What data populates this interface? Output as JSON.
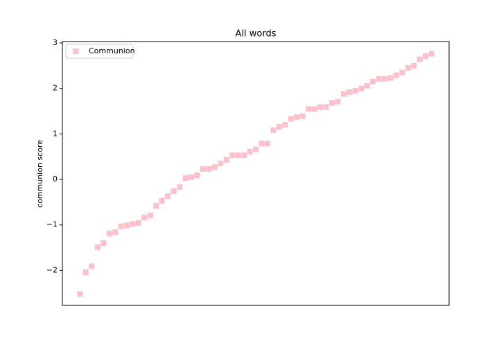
{
  "chart_data": {
    "type": "scatter",
    "title": "All words",
    "ylabel": "communion score",
    "series": [
      {
        "name": "Communion",
        "color": "#ffc0cb",
        "marker": "square",
        "values": [
          -2.52,
          -2.04,
          -1.91,
          -1.49,
          -1.4,
          -1.19,
          -1.16,
          -1.03,
          -1.01,
          -0.98,
          -0.96,
          -0.84,
          -0.79,
          -0.58,
          -0.47,
          -0.37,
          -0.26,
          -0.17,
          0.03,
          0.05,
          0.09,
          0.23,
          0.23,
          0.27,
          0.35,
          0.43,
          0.53,
          0.53,
          0.53,
          0.61,
          0.66,
          0.79,
          0.79,
          1.08,
          1.16,
          1.2,
          1.33,
          1.37,
          1.39,
          1.55,
          1.55,
          1.59,
          1.59,
          1.68,
          1.71,
          1.88,
          1.92,
          1.95,
          2.0,
          2.06,
          2.15,
          2.21,
          2.21,
          2.23,
          2.29,
          2.35,
          2.45,
          2.5,
          2.64,
          2.71,
          2.76
        ]
      }
    ],
    "ylim": [
      -2.77,
      3.03
    ],
    "yticks": [
      {
        "value": -2,
        "label": "−2"
      },
      {
        "value": -1,
        "label": "−1"
      },
      0,
      1,
      2,
      3
    ],
    "grid": false,
    "legend": "upper left"
  }
}
